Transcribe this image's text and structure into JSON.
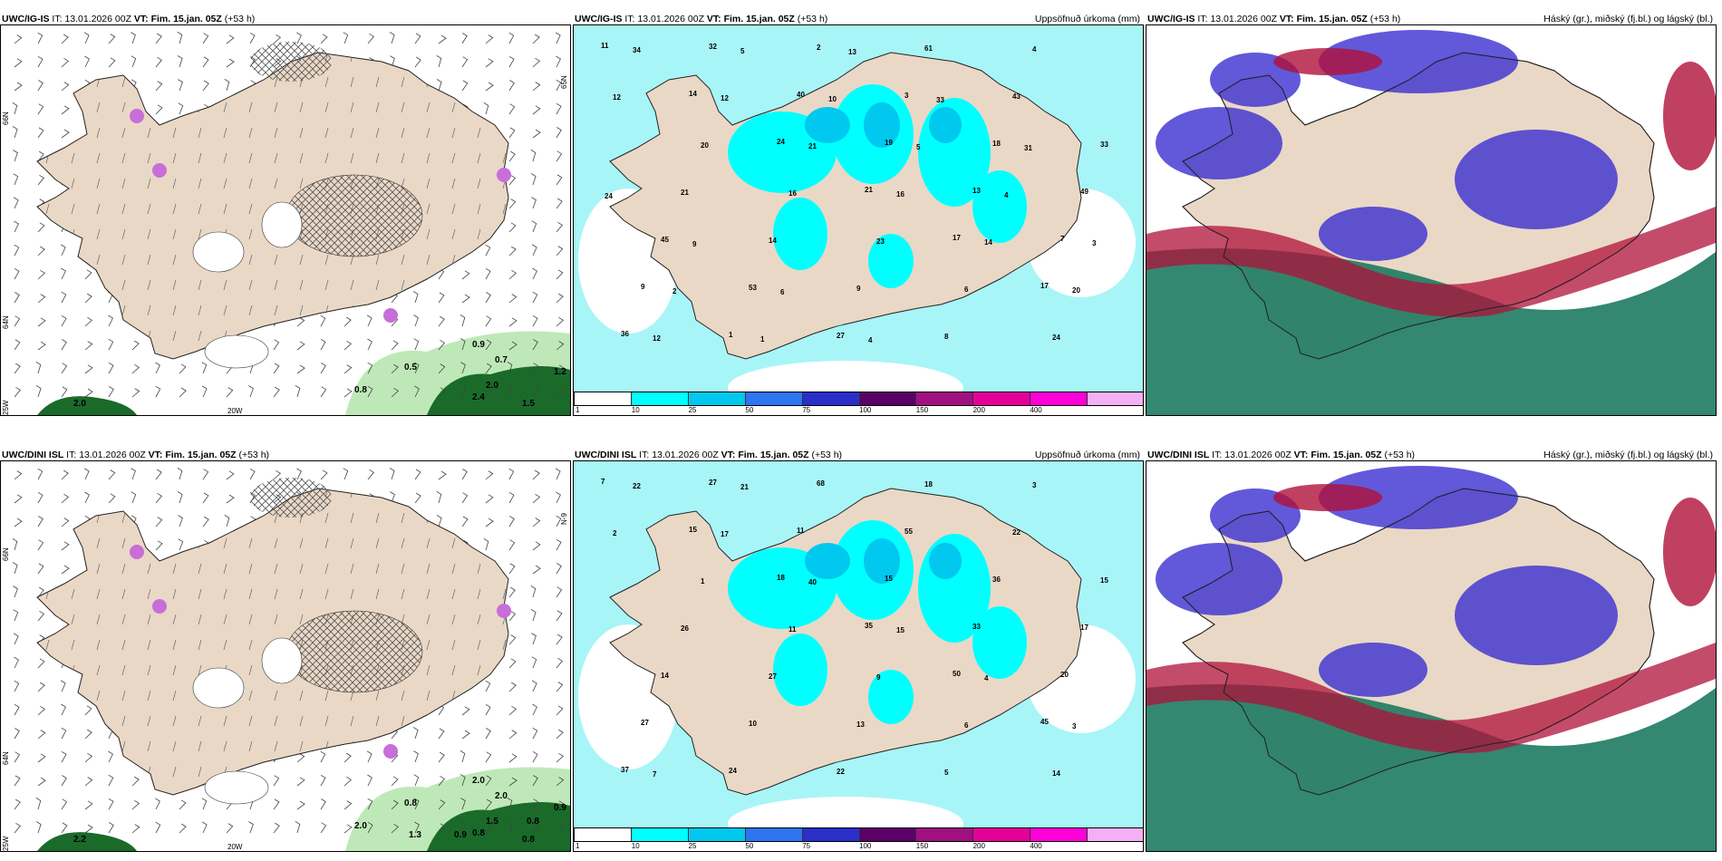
{
  "panels": [
    {
      "model": "UWC/IG-IS",
      "it_label": "IT:",
      "it_value": "13.01.2026 00Z",
      "vt_label": "VT:",
      "vt_value": "Fim. 15.jan. 05Z",
      "lead": "(+53 h)",
      "right_title": "",
      "type": "wind",
      "lat_top": "66N",
      "lat_mid": "64N",
      "lat_bottom": "25W",
      "lon_bottom": "20W",
      "lat_right": "65N",
      "values": [
        "2.0",
        "0.8",
        "0.5",
        "0.9",
        "0.7",
        "2.0",
        "2.4",
        "1.5",
        "1.2"
      ]
    },
    {
      "model": "UWC/IG-IS",
      "it_label": "IT:",
      "it_value": "13.01.2026 00Z",
      "vt_label": "VT:",
      "vt_value": "Fim. 15.jan. 05Z",
      "lead": "(+53 h)",
      "right_title": "Uppsöfnuð úrkoma (mm)",
      "type": "precip",
      "values": [
        "11",
        "14",
        "24",
        "21",
        "17",
        "17",
        "36",
        "32",
        "40",
        "19",
        "13",
        "7",
        "9",
        "1",
        "2",
        "3",
        "18",
        "49",
        "45",
        "53",
        "27",
        "61",
        "43",
        "33",
        "21",
        "14",
        "9",
        "8",
        "4",
        "12",
        "20",
        "16",
        "23",
        "6",
        "24",
        "34",
        "12",
        "21",
        "16",
        "14",
        "20",
        "12",
        "5",
        "10",
        "5",
        "4",
        "3",
        "2",
        "1",
        "13",
        "33",
        "31",
        "24",
        "9",
        "6",
        "4"
      ]
    },
    {
      "model": "UWC/IG-IS",
      "it_label": "IT:",
      "it_value": "13.01.2026 00Z",
      "vt_label": "VT:",
      "vt_value": "Fim. 15.jan. 05Z",
      "lead": "(+53 h)",
      "right_title": "Háský (gr.), miðský (fj.bl.) og lágský (bl.)",
      "type": "clouds"
    },
    {
      "model": "UWC/DINI ISL",
      "it_label": "IT:",
      "it_value": "13.01.2026 00Z",
      "vt_label": "VT:",
      "vt_value": "Fim. 15.jan. 05Z",
      "lead": "(+53 h)",
      "right_title": "",
      "type": "wind",
      "lat_top": "66N",
      "lat_mid": "64N",
      "lat_bottom": "25W",
      "lon_bottom": "20W",
      "lat_right": "N-9",
      "values": [
        "2.2",
        "2.0",
        "0.8",
        "2.0",
        "2.0",
        "1.5",
        "0.8",
        "0.8",
        "0.9",
        "1.3",
        "0.9",
        "0.8"
      ]
    },
    {
      "model": "UWC/DINI ISL",
      "it_label": "IT:",
      "it_value": "13.01.2026 00Z",
      "vt_label": "VT:",
      "vt_value": "Fim. 15.jan. 05Z",
      "lead": "(+53 h)",
      "right_title": "Uppsöfnuð úrkoma (mm)",
      "type": "precip",
      "values": [
        "7",
        "15",
        "18",
        "35",
        "50",
        "45",
        "37",
        "27",
        "11",
        "15",
        "33",
        "20",
        "27",
        "24",
        "68",
        "55",
        "36",
        "17",
        "14",
        "10",
        "22",
        "18",
        "22",
        "15",
        "26",
        "27",
        "13",
        "5",
        "3",
        "2",
        "1",
        "11",
        "9",
        "6",
        "14",
        "22",
        "17",
        "40",
        "15",
        "4",
        "3",
        "7",
        "21"
      ]
    },
    {
      "model": "UWC/DINI ISL",
      "it_label": "IT:",
      "it_value": "13.01.2026 00Z",
      "vt_label": "VT:",
      "vt_value": "Fim. 15.jan. 05Z",
      "lead": "(+53 h)",
      "right_title": "Háský (gr.), miðský (fj.bl.) og lágský (bl.)",
      "type": "clouds"
    }
  ],
  "colorbar": {
    "labels": [
      "1",
      "10",
      "25",
      "50",
      "75",
      "100",
      "150",
      "200",
      "400"
    ],
    "colors": [
      "#ffffff",
      "#00ffff",
      "#00c8ee",
      "#2f74f0",
      "#2a2fc9",
      "#5a0066",
      "#a01080",
      "#e6009a",
      "#ff00d8",
      "#f4b0f4"
    ]
  },
  "colors": {
    "land": "#ead8c6",
    "sea_precip": "#a8f5f8",
    "hatch": "#555555",
    "green_dark": "#1a6b2a",
    "green_light": "#bfe8b8",
    "magenta": "#c86ed8",
    "cloud_blue": "#3a2fd0",
    "cloud_red": "#b0103a",
    "cloud_teal": "#1e7a60"
  }
}
